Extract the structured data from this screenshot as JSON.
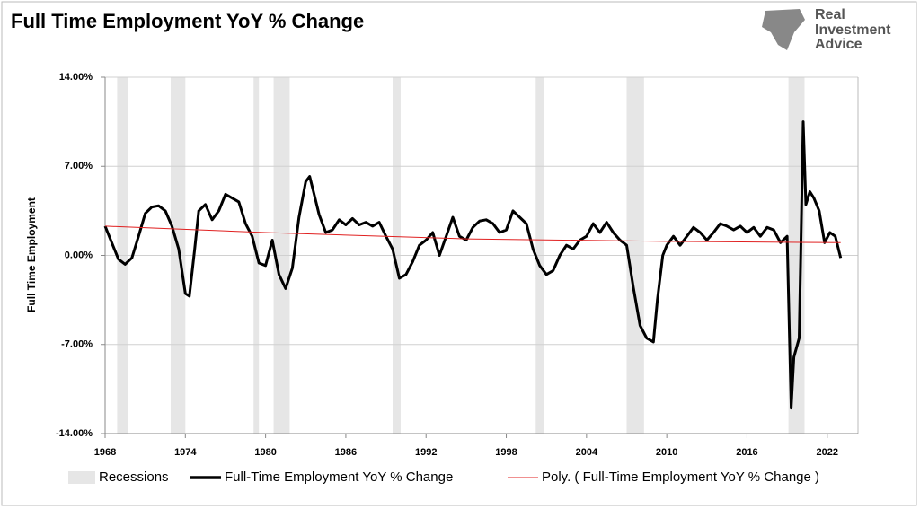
{
  "chart_data": {
    "type": "line",
    "title": "Full Time Employment YoY % Change",
    "logo": [
      "Real",
      "Investment",
      "Advice"
    ],
    "y_label": "Full Time Employment",
    "recession_label": "Recessions",
    "recession_color": "#e6e6e6",
    "recessions": [
      [
        1968.9,
        1969.7
      ],
      [
        1972.9,
        1974.0
      ],
      [
        1979.1,
        1979.5
      ],
      [
        1980.6,
        1981.8
      ],
      [
        1989.5,
        1990.1
      ],
      [
        2000.2,
        2000.8
      ],
      [
        2007.0,
        2008.3
      ],
      [
        2019.1,
        2020.3
      ]
    ],
    "xlim": [
      1968,
      2024.3
    ],
    "xticks": [
      1968,
      1974,
      1980,
      1986,
      1992,
      1998,
      2004,
      2010,
      2016,
      2022
    ],
    "ylim": [
      -14,
      14
    ],
    "yticks": [
      {
        "value": -14,
        "label": "-14.00%"
      },
      {
        "value": -7,
        "label": "-7.00%"
      },
      {
        "value": 0,
        "label": "0.00%"
      },
      {
        "value": 7,
        "label": "7.00%"
      },
      {
        "value": 14,
        "label": "14.00%"
      }
    ],
    "grid": true,
    "series": [
      {
        "name": "Full-Time Employment YoY % Change",
        "color": "#000000",
        "x": [
          1968,
          1968.5,
          1969,
          1969.5,
          1970,
          1970.5,
          1971,
          1971.5,
          1972,
          1972.5,
          1973,
          1973.5,
          1974,
          1974.3,
          1974.7,
          1975,
          1975.5,
          1976,
          1976.5,
          1977,
          1977.5,
          1978,
          1978.5,
          1979,
          1979.5,
          1980,
          1980.5,
          1981,
          1981.5,
          1982,
          1982.5,
          1983,
          1983.3,
          1983.7,
          1984,
          1984.5,
          1985,
          1985.5,
          1986,
          1986.5,
          1987,
          1987.5,
          1988,
          1988.5,
          1989,
          1989.5,
          1990,
          1990.5,
          1991,
          1991.5,
          1992,
          1992.5,
          1993,
          1993.5,
          1994,
          1994.5,
          1995,
          1995.5,
          1996,
          1996.5,
          1997,
          1997.5,
          1998,
          1998.5,
          1999,
          1999.5,
          2000,
          2000.5,
          2001,
          2001.5,
          2002,
          2002.5,
          2003,
          2003.5,
          2004,
          2004.5,
          2005,
          2005.5,
          2006,
          2006.5,
          2007,
          2007.5,
          2008,
          2008.5,
          2009,
          2009.3,
          2009.7,
          2010,
          2010.5,
          2011,
          2011.5,
          2012,
          2012.5,
          2013,
          2013.5,
          2014,
          2014.5,
          2015,
          2015.5,
          2016,
          2016.5,
          2017,
          2017.5,
          2018,
          2018.5,
          2019,
          2019.3,
          2019.5,
          2019.9,
          2020.2,
          2020.4,
          2020.7,
          2021,
          2021.4,
          2021.8,
          2022.2,
          2022.6,
          2023
        ],
        "values": [
          2.3,
          1.0,
          -0.3,
          -0.7,
          -0.2,
          1.5,
          3.3,
          3.8,
          3.9,
          3.5,
          2.3,
          0.5,
          -3.0,
          -3.2,
          0.5,
          3.5,
          4.0,
          2.8,
          3.5,
          4.8,
          4.5,
          4.2,
          2.5,
          1.5,
          -0.6,
          -0.8,
          1.2,
          -1.5,
          -2.6,
          -1.0,
          3.0,
          5.8,
          6.2,
          4.5,
          3.2,
          1.8,
          2.0,
          2.8,
          2.4,
          2.9,
          2.4,
          2.6,
          2.3,
          2.6,
          1.5,
          0.5,
          -1.8,
          -1.5,
          -0.5,
          0.8,
          1.2,
          1.8,
          0.0,
          1.5,
          3.0,
          1.5,
          1.2,
          2.2,
          2.7,
          2.8,
          2.5,
          1.8,
          2.0,
          3.5,
          3.0,
          2.5,
          0.5,
          -0.8,
          -1.5,
          -1.2,
          0.0,
          0.8,
          0.5,
          1.2,
          1.5,
          2.5,
          1.8,
          2.6,
          1.8,
          1.2,
          0.8,
          -2.5,
          -5.5,
          -6.5,
          -6.8,
          -3.5,
          0.0,
          0.8,
          1.5,
          0.8,
          1.5,
          2.2,
          1.8,
          1.2,
          1.8,
          2.5,
          2.3,
          2.0,
          2.3,
          1.8,
          2.2,
          1.5,
          2.2,
          2.0,
          1.0,
          1.5,
          -12.0,
          -8.0,
          -6.5,
          10.5,
          4.0,
          5.0,
          4.5,
          3.5,
          1.0,
          1.8,
          1.5,
          -0.2
        ]
      },
      {
        "name": "Poly. ( Full-Time Employment YoY % Change )",
        "color": "#e02020",
        "x": [
          1968,
          1980,
          1995,
          2010,
          2023
        ],
        "values": [
          2.3,
          1.8,
          1.3,
          1.1,
          1.0
        ]
      }
    ]
  }
}
